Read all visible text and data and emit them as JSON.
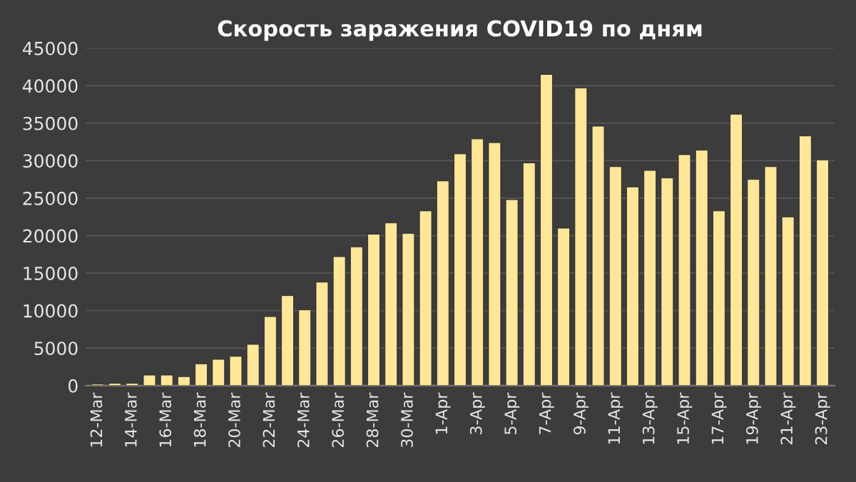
{
  "chart_data": {
    "type": "bar",
    "title": "Скорость заражения COVID19 по дням",
    "categories": [
      "12-Mar",
      null,
      "14-Mar",
      null,
      "16-Mar",
      null,
      "18-Mar",
      null,
      "20-Mar",
      null,
      "22-Mar",
      null,
      "24-Mar",
      null,
      "26-Mar",
      null,
      "28-Mar",
      null,
      "30-Mar",
      null,
      "1-Apr",
      null,
      "3-Apr",
      null,
      "5-Apr",
      null,
      "7-Apr",
      null,
      "9-Apr",
      null,
      "11-Apr",
      null,
      "13-Apr",
      null,
      "15-Apr",
      null,
      "17-Apr",
      null,
      "19-Apr",
      null,
      "21-Apr",
      null,
      "23-Apr"
    ],
    "values": [
      200,
      300,
      300,
      1400,
      1400,
      1200,
      2900,
      3500,
      3900,
      5500,
      9200,
      12000,
      10100,
      13800,
      17200,
      18500,
      20200,
      21700,
      20300,
      23300,
      27300,
      30900,
      32900,
      32400,
      24800,
      29700,
      41500,
      21000,
      39700,
      34600,
      29200,
      26500,
      28700,
      27700,
      30800,
      31400,
      23300,
      36200,
      27500,
      29200,
      22500,
      33300,
      30100
    ],
    "color": "#ffe699",
    "ylim": [
      0,
      45000
    ],
    "yticks": [
      0,
      5000,
      10000,
      15000,
      20000,
      25000,
      30000,
      35000,
      40000,
      45000
    ],
    "grid": "y"
  }
}
